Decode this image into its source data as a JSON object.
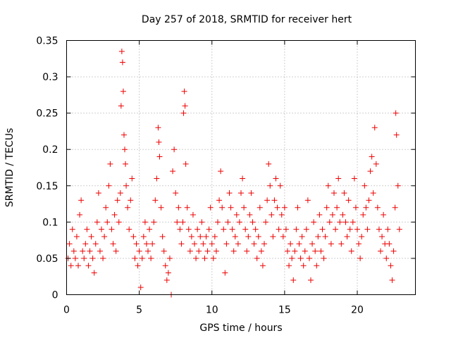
{
  "chart_data": {
    "type": "scatter",
    "title": "Day 257 of 2018, SRMTID for receiver hert",
    "xlabel": "GPS time / hours",
    "ylabel": "SRMTID / TECUs",
    "xlim": [
      0,
      24
    ],
    "ylim": [
      0,
      0.35
    ],
    "x_ticks": [
      "0",
      "5",
      "10",
      "15",
      "20"
    ],
    "x_tick_values": [
      0,
      5,
      10,
      15,
      20
    ],
    "y_ticks": [
      "0",
      "0.05",
      "0.1",
      "0.15",
      "0.2",
      "0.25",
      "0.3",
      "0.35"
    ],
    "y_tick_values": [
      0,
      0.05,
      0.1,
      0.15,
      0.2,
      0.25,
      0.3,
      0.35
    ],
    "grid": true,
    "marker": "+",
    "color": "#ee0000",
    "series": [
      {
        "name": "SRMTID",
        "points": [
          [
            0.1,
            0.05
          ],
          [
            0.2,
            0.07
          ],
          [
            0.3,
            0.04
          ],
          [
            0.4,
            0.09
          ],
          [
            0.5,
            0.06
          ],
          [
            0.6,
            0.05
          ],
          [
            0.7,
            0.08
          ],
          [
            0.8,
            0.04
          ],
          [
            0.9,
            0.11
          ],
          [
            1.0,
            0.13
          ],
          [
            1.1,
            0.06
          ],
          [
            1.2,
            0.05
          ],
          [
            1.3,
            0.07
          ],
          [
            1.4,
            0.09
          ],
          [
            1.5,
            0.04
          ],
          [
            1.6,
            0.06
          ],
          [
            1.7,
            0.08
          ],
          [
            1.8,
            0.05
          ],
          [
            1.9,
            0.03
          ],
          [
            2.0,
            0.07
          ],
          [
            2.1,
            0.1
          ],
          [
            2.2,
            0.14
          ],
          [
            2.3,
            0.06
          ],
          [
            2.4,
            0.09
          ],
          [
            2.5,
            0.05
          ],
          [
            2.6,
            0.08
          ],
          [
            2.7,
            0.12
          ],
          [
            2.8,
            0.1
          ],
          [
            2.9,
            0.15
          ],
          [
            3.0,
            0.18
          ],
          [
            3.1,
            0.09
          ],
          [
            3.2,
            0.07
          ],
          [
            3.3,
            0.11
          ],
          [
            3.4,
            0.06
          ],
          [
            3.5,
            0.13
          ],
          [
            3.6,
            0.1
          ],
          [
            3.7,
            0.14
          ],
          [
            3.75,
            0.26
          ],
          [
            3.8,
            0.335
          ],
          [
            3.85,
            0.32
          ],
          [
            3.9,
            0.28
          ],
          [
            3.95,
            0.22
          ],
          [
            4.0,
            0.2
          ],
          [
            4.05,
            0.18
          ],
          [
            4.1,
            0.15
          ],
          [
            4.2,
            0.12
          ],
          [
            4.3,
            0.09
          ],
          [
            4.4,
            0.13
          ],
          [
            4.5,
            0.16
          ],
          [
            4.6,
            0.08
          ],
          [
            4.7,
            0.05
          ],
          [
            4.8,
            0.07
          ],
          [
            4.9,
            0.04
          ],
          [
            5.0,
            0.06
          ],
          [
            5.1,
            0.01
          ],
          [
            5.2,
            0.05
          ],
          [
            5.3,
            0.08
          ],
          [
            5.4,
            0.1
          ],
          [
            5.5,
            0.07
          ],
          [
            5.6,
            0.06
          ],
          [
            5.7,
            0.09
          ],
          [
            5.8,
            0.05
          ],
          [
            5.9,
            0.07
          ],
          [
            6.0,
            0.1
          ],
          [
            6.1,
            0.13
          ],
          [
            6.2,
            0.16
          ],
          [
            6.3,
            0.23
          ],
          [
            6.35,
            0.21
          ],
          [
            6.4,
            0.19
          ],
          [
            6.5,
            0.12
          ],
          [
            6.6,
            0.08
          ],
          [
            6.7,
            0.06
          ],
          [
            6.8,
            0.04
          ],
          [
            6.9,
            0.02
          ],
          [
            7.0,
            0.03
          ],
          [
            7.1,
            0.05
          ],
          [
            7.2,
            0.0
          ],
          [
            7.3,
            0.17
          ],
          [
            7.4,
            0.2
          ],
          [
            7.5,
            0.14
          ],
          [
            7.6,
            0.1
          ],
          [
            7.7,
            0.12
          ],
          [
            7.8,
            0.09
          ],
          [
            7.9,
            0.07
          ],
          [
            8.0,
            0.1
          ],
          [
            8.05,
            0.25
          ],
          [
            8.1,
            0.28
          ],
          [
            8.15,
            0.26
          ],
          [
            8.2,
            0.18
          ],
          [
            8.3,
            0.12
          ],
          [
            8.4,
            0.09
          ],
          [
            8.5,
            0.06
          ],
          [
            8.6,
            0.08
          ],
          [
            8.7,
            0.11
          ],
          [
            8.8,
            0.07
          ],
          [
            8.9,
            0.05
          ],
          [
            9.0,
            0.09
          ],
          [
            9.1,
            0.06
          ],
          [
            9.2,
            0.08
          ],
          [
            9.3,
            0.1
          ],
          [
            9.4,
            0.07
          ],
          [
            9.5,
            0.05
          ],
          [
            9.6,
            0.08
          ],
          [
            9.7,
            0.06
          ],
          [
            9.8,
            0.09
          ],
          [
            9.9,
            0.12
          ],
          [
            10.0,
            0.07
          ],
          [
            10.1,
            0.05
          ],
          [
            10.2,
            0.08
          ],
          [
            10.3,
            0.06
          ],
          [
            10.4,
            0.1
          ],
          [
            10.5,
            0.13
          ],
          [
            10.6,
            0.17
          ],
          [
            10.7,
            0.12
          ],
          [
            10.8,
            0.09
          ],
          [
            10.9,
            0.03
          ],
          [
            11.0,
            0.07
          ],
          [
            11.1,
            0.1
          ],
          [
            11.2,
            0.14
          ],
          [
            11.3,
            0.12
          ],
          [
            11.4,
            0.09
          ],
          [
            11.5,
            0.06
          ],
          [
            11.6,
            0.08
          ],
          [
            11.7,
            0.11
          ],
          [
            11.8,
            0.07
          ],
          [
            11.9,
            0.1
          ],
          [
            12.0,
            0.14
          ],
          [
            12.1,
            0.16
          ],
          [
            12.2,
            0.12
          ],
          [
            12.3,
            0.09
          ],
          [
            12.4,
            0.06
          ],
          [
            12.5,
            0.08
          ],
          [
            12.6,
            0.11
          ],
          [
            12.7,
            0.14
          ],
          [
            12.8,
            0.1
          ],
          [
            12.9,
            0.07
          ],
          [
            13.0,
            0.09
          ],
          [
            13.1,
            0.05
          ],
          [
            13.2,
            0.08
          ],
          [
            13.3,
            0.12
          ],
          [
            13.4,
            0.06
          ],
          [
            13.5,
            0.04
          ],
          [
            13.6,
            0.07
          ],
          [
            13.7,
            0.1
          ],
          [
            13.8,
            0.13
          ],
          [
            13.9,
            0.18
          ],
          [
            14.0,
            0.15
          ],
          [
            14.1,
            0.11
          ],
          [
            14.2,
            0.08
          ],
          [
            14.3,
            0.13
          ],
          [
            14.4,
            0.16
          ],
          [
            14.5,
            0.12
          ],
          [
            14.6,
            0.09
          ],
          [
            14.7,
            0.15
          ],
          [
            14.8,
            0.11
          ],
          [
            14.9,
            0.08
          ],
          [
            15.0,
            0.12
          ],
          [
            15.1,
            0.09
          ],
          [
            15.2,
            0.06
          ],
          [
            15.3,
            0.04
          ],
          [
            15.4,
            0.07
          ],
          [
            15.5,
            0.05
          ],
          [
            15.6,
            0.02
          ],
          [
            15.7,
            0.06
          ],
          [
            15.8,
            0.09
          ],
          [
            15.9,
            0.12
          ],
          [
            16.0,
            0.07
          ],
          [
            16.1,
            0.05
          ],
          [
            16.2,
            0.08
          ],
          [
            16.3,
            0.04
          ],
          [
            16.4,
            0.06
          ],
          [
            16.5,
            0.09
          ],
          [
            16.6,
            0.13
          ],
          [
            16.7,
            0.05
          ],
          [
            16.8,
            0.02
          ],
          [
            16.9,
            0.07
          ],
          [
            17.0,
            0.1
          ],
          [
            17.1,
            0.06
          ],
          [
            17.2,
            0.04
          ],
          [
            17.3,
            0.08
          ],
          [
            17.4,
            0.11
          ],
          [
            17.5,
            0.06
          ],
          [
            17.6,
            0.09
          ],
          [
            17.7,
            0.05
          ],
          [
            17.8,
            0.08
          ],
          [
            17.9,
            0.12
          ],
          [
            18.0,
            0.15
          ],
          [
            18.1,
            0.1
          ],
          [
            18.2,
            0.07
          ],
          [
            18.3,
            0.11
          ],
          [
            18.4,
            0.14
          ],
          [
            18.5,
            0.09
          ],
          [
            18.6,
            0.12
          ],
          [
            18.7,
            0.16
          ],
          [
            18.8,
            0.1
          ],
          [
            18.9,
            0.07
          ],
          [
            19.0,
            0.11
          ],
          [
            19.1,
            0.14
          ],
          [
            19.2,
            0.1
          ],
          [
            19.3,
            0.08
          ],
          [
            19.4,
            0.13
          ],
          [
            19.5,
            0.09
          ],
          [
            19.6,
            0.06
          ],
          [
            19.7,
            0.1
          ],
          [
            19.8,
            0.16
          ],
          [
            19.9,
            0.12
          ],
          [
            20.0,
            0.09
          ],
          [
            20.1,
            0.07
          ],
          [
            20.2,
            0.05
          ],
          [
            20.3,
            0.08
          ],
          [
            20.4,
            0.11
          ],
          [
            20.5,
            0.15
          ],
          [
            20.6,
            0.12
          ],
          [
            20.7,
            0.09
          ],
          [
            20.8,
            0.13
          ],
          [
            20.9,
            0.17
          ],
          [
            21.0,
            0.19
          ],
          [
            21.1,
            0.14
          ],
          [
            21.2,
            0.23
          ],
          [
            21.3,
            0.18
          ],
          [
            21.4,
            0.12
          ],
          [
            21.5,
            0.09
          ],
          [
            21.6,
            0.06
          ],
          [
            21.7,
            0.08
          ],
          [
            21.8,
            0.11
          ],
          [
            21.9,
            0.07
          ],
          [
            22.0,
            0.05
          ],
          [
            22.1,
            0.09
          ],
          [
            22.2,
            0.07
          ],
          [
            22.3,
            0.04
          ],
          [
            22.4,
            0.02
          ],
          [
            22.5,
            0.06
          ],
          [
            22.6,
            0.12
          ],
          [
            22.65,
            0.25
          ],
          [
            22.7,
            0.22
          ],
          [
            22.8,
            0.15
          ],
          [
            22.9,
            0.09
          ]
        ]
      }
    ]
  }
}
